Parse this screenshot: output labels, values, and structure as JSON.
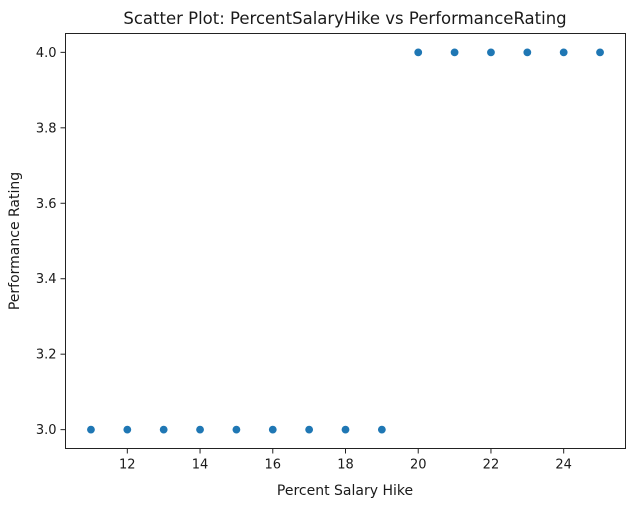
{
  "chart_data": {
    "type": "scatter",
    "title": "Scatter Plot: PercentSalaryHike vs PerformanceRating",
    "xlabel": "Percent Salary Hike",
    "ylabel": "Performance Rating",
    "xlim": [
      10.3,
      25.7
    ],
    "ylim": [
      2.95,
      4.05
    ],
    "x_ticks": [
      12,
      14,
      16,
      18,
      20,
      22,
      24
    ],
    "x_tick_labels": [
      "12",
      "14",
      "16",
      "18",
      "20",
      "22",
      "24"
    ],
    "y_ticks": [
      3.0,
      3.2,
      3.4,
      3.6,
      3.8,
      4.0
    ],
    "y_tick_labels": [
      "3.0",
      "3.2",
      "3.4",
      "3.6",
      "3.8",
      "4.0"
    ],
    "grid": false,
    "legend": "none",
    "point_color": "#1f77b4",
    "points": [
      {
        "x": 11,
        "y": 3.0
      },
      {
        "x": 12,
        "y": 3.0
      },
      {
        "x": 13,
        "y": 3.0
      },
      {
        "x": 14,
        "y": 3.0
      },
      {
        "x": 15,
        "y": 3.0
      },
      {
        "x": 16,
        "y": 3.0
      },
      {
        "x": 17,
        "y": 3.0
      },
      {
        "x": 18,
        "y": 3.0
      },
      {
        "x": 19,
        "y": 3.0
      },
      {
        "x": 20,
        "y": 4.0
      },
      {
        "x": 21,
        "y": 4.0
      },
      {
        "x": 22,
        "y": 4.0
      },
      {
        "x": 23,
        "y": 4.0
      },
      {
        "x": 24,
        "y": 4.0
      },
      {
        "x": 25,
        "y": 4.0
      }
    ]
  }
}
